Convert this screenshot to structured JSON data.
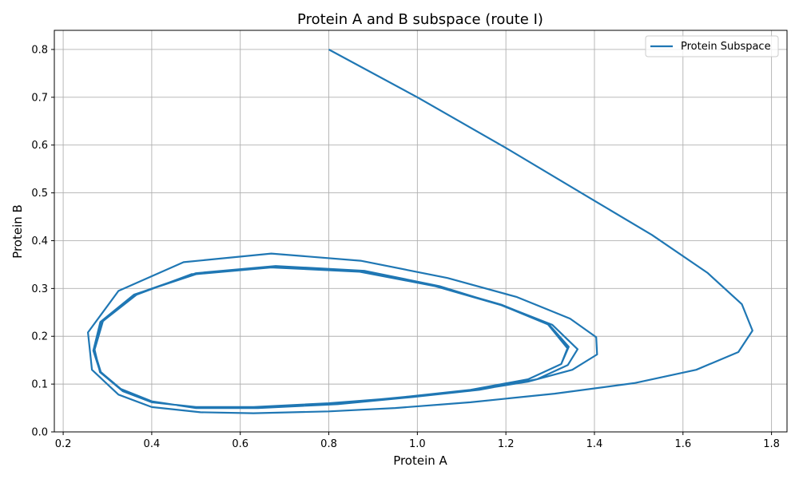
{
  "chart_data": {
    "type": "line",
    "title": "Protein A and B subspace (route I)",
    "xlabel": "Protein A",
    "ylabel": "Protein B",
    "xlim": [
      0.18,
      1.835
    ],
    "ylim": [
      0.0,
      0.84
    ],
    "xticks": [
      0.2,
      0.4,
      0.6,
      0.8,
      1.0,
      1.2,
      1.4,
      1.6,
      1.8
    ],
    "xtick_labels": [
      "0.2",
      "0.4",
      "0.6",
      "0.8",
      "1.0",
      "1.2",
      "1.4",
      "1.6",
      "1.8"
    ],
    "yticks": [
      0.0,
      0.1,
      0.2,
      0.3,
      0.4,
      0.5,
      0.6,
      0.7,
      0.8
    ],
    "ytick_labels": [
      "0.0",
      "0.1",
      "0.2",
      "0.3",
      "0.4",
      "0.5",
      "0.6",
      "0.7",
      "0.8"
    ],
    "grid": true,
    "legend_position": "top-right",
    "series": [
      {
        "name": "Protein Subspace",
        "color": "#1f77b4",
        "points": [
          [
            0.8,
            0.8
          ],
          [
            1.0,
            0.7
          ],
          [
            1.2,
            0.594
          ],
          [
            1.37,
            0.5
          ],
          [
            1.53,
            0.412
          ],
          [
            1.655,
            0.333
          ],
          [
            1.733,
            0.267
          ],
          [
            1.757,
            0.212
          ],
          [
            1.725,
            0.167
          ],
          [
            1.63,
            0.13
          ],
          [
            1.49,
            0.102
          ],
          [
            1.31,
            0.08
          ],
          [
            1.12,
            0.062
          ],
          [
            0.95,
            0.05
          ],
          [
            0.8,
            0.043
          ],
          [
            0.63,
            0.039
          ],
          [
            0.51,
            0.041
          ],
          [
            0.4,
            0.052
          ],
          [
            0.325,
            0.078
          ],
          [
            0.265,
            0.13
          ],
          [
            0.256,
            0.208
          ],
          [
            0.325,
            0.295
          ],
          [
            0.472,
            0.355
          ],
          [
            0.67,
            0.373
          ],
          [
            0.872,
            0.358
          ],
          [
            1.068,
            0.322
          ],
          [
            1.225,
            0.282
          ],
          [
            1.345,
            0.237
          ],
          [
            1.404,
            0.198
          ],
          [
            1.406,
            0.162
          ],
          [
            1.35,
            0.13
          ],
          [
            1.25,
            0.105
          ],
          [
            1.12,
            0.086
          ],
          [
            0.97,
            0.072
          ],
          [
            0.8,
            0.06
          ],
          [
            0.63,
            0.052
          ],
          [
            0.5,
            0.052
          ],
          [
            0.4,
            0.062
          ],
          [
            0.335,
            0.085
          ],
          [
            0.283,
            0.125
          ],
          [
            0.271,
            0.172
          ],
          [
            0.29,
            0.232
          ],
          [
            0.37,
            0.29
          ],
          [
            0.5,
            0.332
          ],
          [
            0.68,
            0.347
          ],
          [
            0.88,
            0.337
          ],
          [
            1.05,
            0.305
          ],
          [
            1.2,
            0.262
          ],
          [
            1.305,
            0.224
          ],
          [
            1.362,
            0.173
          ],
          [
            1.34,
            0.14
          ],
          [
            1.27,
            0.11
          ],
          [
            1.14,
            0.088
          ],
          [
            0.99,
            0.073
          ],
          [
            0.82,
            0.058
          ],
          [
            0.64,
            0.05
          ],
          [
            0.5,
            0.05
          ],
          [
            0.4,
            0.064
          ],
          [
            0.33,
            0.09
          ],
          [
            0.285,
            0.125
          ],
          [
            0.27,
            0.17
          ],
          [
            0.285,
            0.228
          ],
          [
            0.36,
            0.285
          ],
          [
            0.49,
            0.33
          ],
          [
            0.66,
            0.345
          ],
          [
            0.87,
            0.336
          ],
          [
            1.04,
            0.306
          ],
          [
            1.19,
            0.266
          ],
          [
            1.295,
            0.227
          ],
          [
            1.342,
            0.178
          ],
          [
            1.325,
            0.142
          ],
          [
            1.25,
            0.11
          ],
          [
            1.12,
            0.088
          ],
          [
            0.98,
            0.074
          ],
          [
            0.81,
            0.059
          ],
          [
            0.64,
            0.051
          ],
          [
            0.5,
            0.051
          ],
          [
            0.4,
            0.063
          ],
          [
            0.33,
            0.089
          ],
          [
            0.283,
            0.127
          ],
          [
            0.268,
            0.17
          ],
          [
            0.284,
            0.23
          ],
          [
            0.36,
            0.287
          ],
          [
            0.5,
            0.33
          ],
          [
            0.67,
            0.344
          ],
          [
            0.87,
            0.335
          ],
          [
            1.04,
            0.305
          ],
          [
            1.19,
            0.265
          ],
          [
            1.295,
            0.225
          ],
          [
            1.34,
            0.177
          ],
          [
            1.325,
            0.142
          ],
          [
            1.25,
            0.11
          ],
          [
            1.12,
            0.088
          ],
          [
            0.98,
            0.074
          ],
          [
            0.81,
            0.059
          ],
          [
            0.64,
            0.05
          ],
          [
            0.5,
            0.051
          ],
          [
            0.4,
            0.063
          ],
          [
            0.33,
            0.089
          ],
          [
            0.283,
            0.127
          ],
          [
            0.268,
            0.17
          ],
          [
            0.284,
            0.23
          ],
          [
            0.36,
            0.287
          ],
          [
            0.5,
            0.33
          ],
          [
            0.67,
            0.344
          ],
          [
            0.87,
            0.335
          ],
          [
            1.04,
            0.305
          ],
          [
            1.19,
            0.265
          ],
          [
            1.295,
            0.225
          ],
          [
            1.338,
            0.176
          ]
        ]
      }
    ]
  }
}
